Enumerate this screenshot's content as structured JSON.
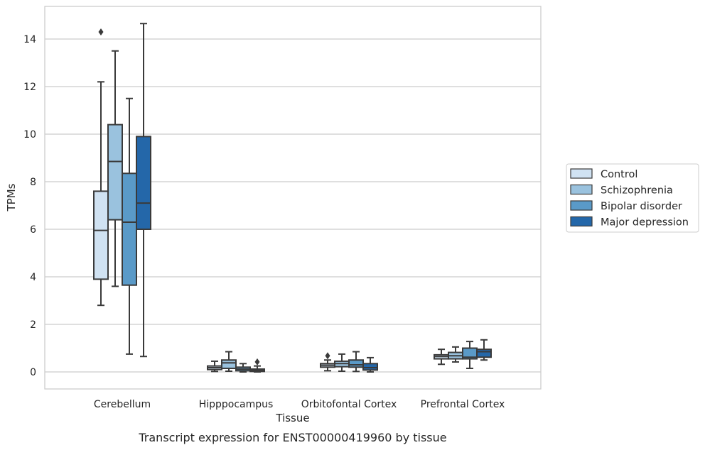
{
  "chart_data": {
    "type": "box",
    "caption": "Transcript expression for ENST00000419960 by tissue",
    "xlabel": "Tissue",
    "ylabel": "TPMs",
    "ylim": [
      -0.7,
      15.4
    ],
    "yticks": [
      0,
      2,
      4,
      6,
      8,
      10,
      12,
      14
    ],
    "grid": "horizontal",
    "legend_position": "right",
    "categories": [
      "Cerebellum",
      "Hipppocampus",
      "Orbitofontal Cortex",
      "Prefrontal Cortex"
    ],
    "series": [
      {
        "name": "Control",
        "color": "#d0e2f2",
        "boxes": [
          {
            "whisker_low": 2.8,
            "q1": 3.9,
            "median": 5.95,
            "q3": 7.6,
            "whisker_high": 12.2,
            "outliers": [
              14.3
            ]
          },
          {
            "whisker_low": 0.02,
            "q1": 0.1,
            "median": 0.18,
            "q3": 0.25,
            "whisker_high": 0.45,
            "outliers": []
          },
          {
            "whisker_low": 0.05,
            "q1": 0.2,
            "median": 0.28,
            "q3": 0.35,
            "whisker_high": 0.5,
            "outliers": [
              0.68
            ]
          },
          {
            "whisker_low": 0.32,
            "q1": 0.55,
            "median": 0.65,
            "q3": 0.72,
            "whisker_high": 0.95,
            "outliers": []
          }
        ]
      },
      {
        "name": "Schizophrenia",
        "color": "#9ac2de",
        "boxes": [
          {
            "whisker_low": 3.6,
            "q1": 6.4,
            "median": 8.85,
            "q3": 10.4,
            "whisker_high": 13.5,
            "outliers": []
          },
          {
            "whisker_low": 0.03,
            "q1": 0.15,
            "median": 0.38,
            "q3": 0.5,
            "whisker_high": 0.85,
            "outliers": []
          },
          {
            "whisker_low": 0.03,
            "q1": 0.22,
            "median": 0.35,
            "q3": 0.45,
            "whisker_high": 0.75,
            "outliers": []
          },
          {
            "whisker_low": 0.42,
            "q1": 0.55,
            "median": 0.68,
            "q3": 0.82,
            "whisker_high": 1.05,
            "outliers": []
          }
        ]
      },
      {
        "name": "Bipolar disorder",
        "color": "#5a9ac8",
        "boxes": [
          {
            "whisker_low": 0.75,
            "q1": 3.65,
            "median": 6.3,
            "q3": 8.35,
            "whisker_high": 11.5,
            "outliers": []
          },
          {
            "whisker_low": 0.0,
            "q1": 0.05,
            "median": 0.12,
            "q3": 0.2,
            "whisker_high": 0.35,
            "outliers": []
          },
          {
            "whisker_low": 0.02,
            "q1": 0.2,
            "median": 0.3,
            "q3": 0.5,
            "whisker_high": 0.85,
            "outliers": []
          },
          {
            "whisker_low": 0.15,
            "q1": 0.55,
            "median": 0.62,
            "q3": 1.0,
            "whisker_high": 1.28,
            "outliers": []
          }
        ]
      },
      {
        "name": "Major depression",
        "color": "#2467a9",
        "boxes": [
          {
            "whisker_low": 0.65,
            "q1": 6.0,
            "median": 7.1,
            "q3": 9.9,
            "whisker_high": 14.65,
            "outliers": []
          },
          {
            "whisker_low": 0.0,
            "q1": 0.02,
            "median": 0.06,
            "q3": 0.12,
            "whisker_high": 0.25,
            "outliers": [
              0.42
            ]
          },
          {
            "whisker_low": 0.0,
            "q1": 0.08,
            "median": 0.18,
            "q3": 0.35,
            "whisker_high": 0.6,
            "outliers": []
          },
          {
            "whisker_low": 0.5,
            "q1": 0.62,
            "median": 0.85,
            "q3": 0.95,
            "whisker_high": 1.35,
            "outliers": []
          }
        ]
      }
    ]
  }
}
